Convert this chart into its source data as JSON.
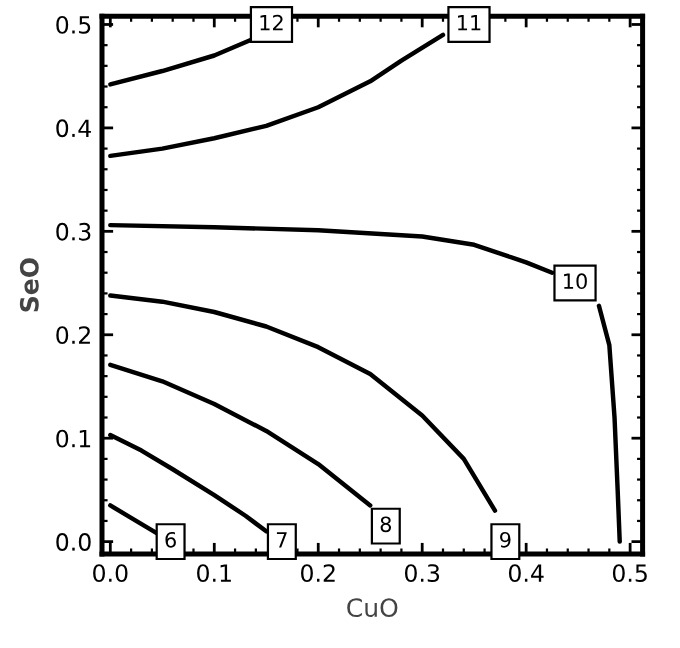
{
  "chart_data": {
    "type": "line",
    "xlabel": "CuO",
    "ylabel": "SeO",
    "xlim": [
      -0.008,
      0.512
    ],
    "ylim": [
      -0.012,
      0.508
    ],
    "xticks": [
      {
        "value": 0.0,
        "label": "0.0"
      },
      {
        "value": 0.1,
        "label": "0.1"
      },
      {
        "value": 0.2,
        "label": "0.2"
      },
      {
        "value": 0.3,
        "label": "0.3"
      },
      {
        "value": 0.4,
        "label": "0.4"
      },
      {
        "value": 0.5,
        "label": "0.5"
      }
    ],
    "yticks": [
      {
        "value": 0.0,
        "label": "0.0"
      },
      {
        "value": 0.1,
        "label": "0.1"
      },
      {
        "value": 0.2,
        "label": "0.2"
      },
      {
        "value": 0.3,
        "label": "0.3"
      },
      {
        "value": 0.4,
        "label": "0.4"
      },
      {
        "value": 0.5,
        "label": "0.5"
      }
    ],
    "grid": false,
    "legend": false,
    "marker": "none",
    "line_style": "solid",
    "series": [
      {
        "color": "#000000",
        "x": [
          0,
          0.02,
          0.045
        ],
        "values": [
          0.035,
          0.023,
          0.008
        ]
      },
      {
        "color": "#000000",
        "x": [
          0,
          0.03,
          0.06,
          0.1,
          0.13,
          0.15
        ],
        "values": [
          0.103,
          0.088,
          0.07,
          0.045,
          0.025,
          0.01
        ]
      },
      {
        "color": "#000000",
        "x": [
          0,
          0.05,
          0.1,
          0.15,
          0.2,
          0.25
        ],
        "values": [
          0.171,
          0.155,
          0.133,
          0.107,
          0.075,
          0.035
        ]
      },
      {
        "color": "#000000",
        "x": [
          0,
          0.05,
          0.1,
          0.15,
          0.2,
          0.25,
          0.3,
          0.34,
          0.37
        ],
        "values": [
          0.238,
          0.232,
          0.222,
          0.208,
          0.188,
          0.162,
          0.122,
          0.08,
          0.03
        ]
      },
      {
        "color": "#000000",
        "x": [
          0,
          0.1,
          0.2,
          0.3,
          0.35,
          0.4,
          0.425,
          0.445,
          0.47,
          0.48,
          0.485,
          0.488,
          0.49
        ],
        "values": [
          0.306,
          0.304,
          0.301,
          0.295,
          0.287,
          0.27,
          0.26,
          null,
          0.228,
          0.19,
          0.12,
          0.05,
          0.0
        ]
      },
      {
        "color": "#000000",
        "x": [
          0,
          0.05,
          0.1,
          0.15,
          0.2,
          0.25,
          0.28,
          0.32
        ],
        "values": [
          0.373,
          0.38,
          0.39,
          0.402,
          0.42,
          0.445,
          0.465,
          0.49
        ]
      },
      {
        "color": "#000000",
        "x": [
          0,
          0.05,
          0.1,
          0.135
        ],
        "values": [
          0.442,
          0.455,
          0.47,
          0.485
        ]
      }
    ],
    "annotations": [
      {
        "text": "6",
        "x": 0.058,
        "y": 0.0
      },
      {
        "text": "7",
        "x": 0.165,
        "y": 0.0
      },
      {
        "text": "8",
        "x": 0.265,
        "y": 0.015
      },
      {
        "text": "9",
        "x": 0.38,
        "y": 0.0
      },
      {
        "text": "10",
        "x": 0.447,
        "y": 0.25
      },
      {
        "text": "11",
        "x": 0.345,
        "y": 0.5
      },
      {
        "text": "12",
        "x": 0.155,
        "y": 0.5
      }
    ]
  }
}
